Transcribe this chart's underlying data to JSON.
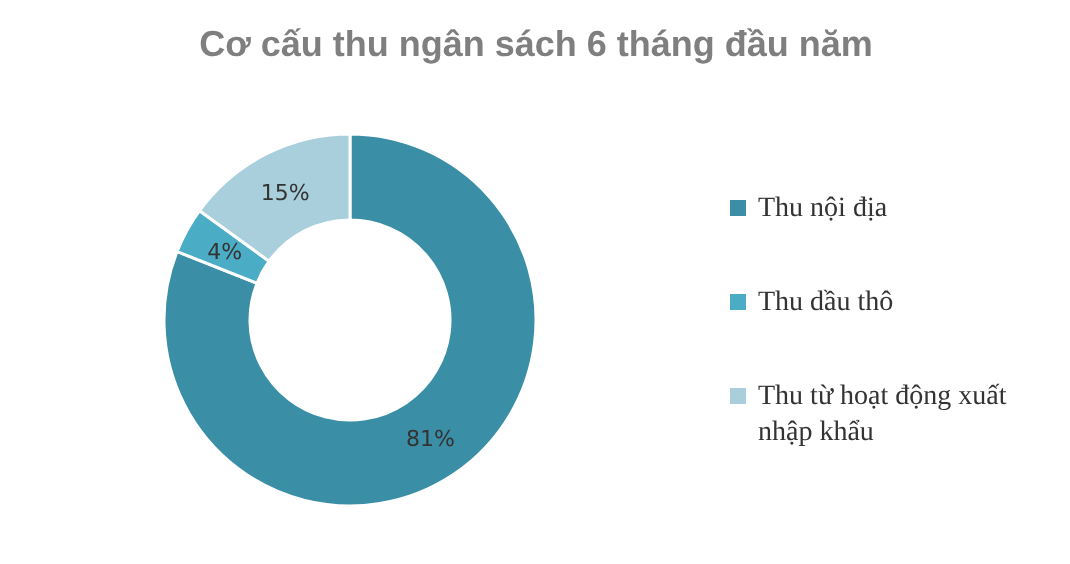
{
  "chart_data": {
    "type": "donut",
    "title": "Cơ cấu thu ngân sách 6 tháng đầu năm",
    "categories": [
      "Thu nội địa",
      "Thu dầu thô",
      "Thu từ hoạt động xuất nhập khẩu"
    ],
    "values": [
      81,
      4,
      15
    ],
    "colors": [
      "#3a8ea5",
      "#4bacc6",
      "#a9cfdc"
    ],
    "value_labels": [
      "81%",
      "4%",
      "15%"
    ],
    "legend": "right"
  }
}
